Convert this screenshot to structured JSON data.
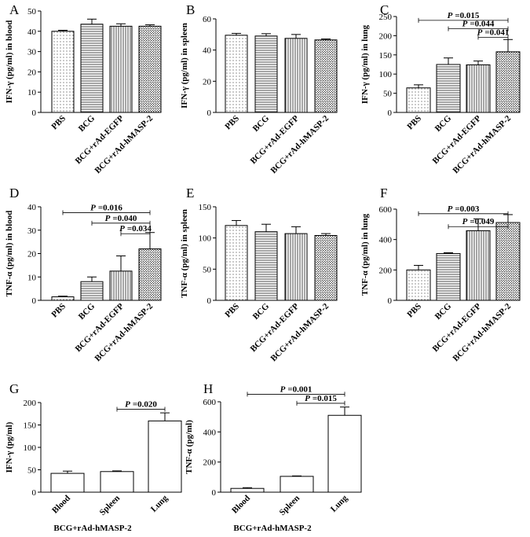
{
  "chart_data": [
    {
      "id": "A",
      "type": "bar",
      "panel_label": "A",
      "ylabel": "IFN-γ (pg/ml) in blood",
      "ylim": [
        0,
        50
      ],
      "yticks": [
        0,
        10,
        20,
        30,
        40,
        50
      ],
      "categories": [
        "PBS",
        "BCG",
        "BCG+rAd-EGFP",
        "BCG+rAd-hMASP-2"
      ],
      "values": [
        40,
        43.5,
        42.5,
        42.5
      ],
      "errors": [
        0.5,
        2.5,
        1.2,
        0.7
      ],
      "patterns": [
        "dots",
        "hlines",
        "vlines",
        "dense"
      ],
      "significance": []
    },
    {
      "id": "B",
      "type": "bar",
      "panel_label": "B",
      "ylabel": "IFN-γ (pg/ml) in spleen",
      "ylim": [
        0,
        60
      ],
      "yticks": [
        0,
        20,
        40,
        60
      ],
      "categories": [
        "PBS",
        "BCG",
        "BCG+rAd-EGFP",
        "BCG+rAd-hMASP-2"
      ],
      "values": [
        49.5,
        49,
        47.5,
        46.5
      ],
      "errors": [
        1.2,
        1.5,
        2.5,
        0.6
      ],
      "patterns": [
        "dots",
        "hlines",
        "vlines",
        "dense"
      ],
      "significance": []
    },
    {
      "id": "C",
      "type": "bar",
      "panel_label": "C",
      "ylabel": "IFN-γ (pg/ml) in lung",
      "ylim": [
        0,
        250
      ],
      "yticks": [
        0,
        50,
        100,
        150,
        200,
        250
      ],
      "categories": [
        "PBS",
        "BCG",
        "BCG+rAd-EGFP",
        "BCG+rAd-hMASP-2"
      ],
      "values": [
        64,
        125,
        124,
        158
      ],
      "errors": [
        8,
        17,
        10,
        32
      ],
      "patterns": [
        "dots",
        "hlines",
        "vlines",
        "dense"
      ],
      "significance": [
        {
          "label": "P =0.015",
          "p_prefix": "P",
          "p_value": "=0.015",
          "from": 0,
          "to": 3,
          "y": 240
        },
        {
          "label": "P =0.044",
          "p_prefix": "P",
          "p_value": "=0.044",
          "from": 1,
          "to": 3,
          "y": 218
        },
        {
          "label": "P =0.041",
          "p_prefix": "P",
          "p_value": "=0.041",
          "from": 2,
          "to": 3,
          "y": 196
        }
      ]
    },
    {
      "id": "D",
      "type": "bar",
      "panel_label": "D",
      "ylabel": "TNF-α (pg/ml) in blood",
      "ylim": [
        0,
        40
      ],
      "yticks": [
        0,
        10,
        20,
        30,
        40
      ],
      "categories": [
        "PBS",
        "BCG",
        "BCG+rAd-EGFP",
        "BCG+rAd-hMASP-2"
      ],
      "values": [
        1.5,
        8,
        12.5,
        22
      ],
      "errors": [
        0.3,
        2,
        6.5,
        7
      ],
      "patterns": [
        "dots",
        "hlines",
        "vlines",
        "dense"
      ],
      "significance": [
        {
          "label": "P =0.016",
          "p_prefix": "P",
          "p_value": "=0.016",
          "from": 0,
          "to": 3,
          "y": 37.5
        },
        {
          "label": "P =0.040",
          "p_prefix": "P",
          "p_value": "=0.040",
          "from": 1,
          "to": 3,
          "y": 33
        },
        {
          "label": "P =0.034",
          "p_prefix": "P",
          "p_value": "=0.034",
          "from": 2,
          "to": 3,
          "y": 28.5
        }
      ]
    },
    {
      "id": "E",
      "type": "bar",
      "panel_label": "E",
      "ylabel": "TNF-α (pg/ml) in spleen",
      "ylim": [
        0,
        150
      ],
      "yticks": [
        0,
        50,
        100,
        150
      ],
      "categories": [
        "PBS",
        "BCG",
        "BCG+rAd-EGFP",
        "BCG+rAd-hMASP-2"
      ],
      "values": [
        120,
        110,
        107,
        104
      ],
      "errors": [
        8,
        12,
        11,
        3
      ],
      "patterns": [
        "dots",
        "hlines",
        "vlines",
        "dense"
      ],
      "significance": []
    },
    {
      "id": "F",
      "type": "bar",
      "panel_label": "F",
      "ylabel": "TNF-α (pg/ml) in lung",
      "ylim": [
        0,
        600
      ],
      "yticks": [
        0,
        200,
        400,
        600
      ],
      "categories": [
        "PBS",
        "BCG",
        "BCG+rAd-EGFP",
        "BCG+rAd-hMASP-2"
      ],
      "values": [
        200,
        308,
        458,
        512
      ],
      "errors": [
        30,
        5,
        78,
        52
      ],
      "patterns": [
        "dots",
        "hlines",
        "vlines",
        "dense"
      ],
      "significance": [
        {
          "label": "P =0.003",
          "p_prefix": "P",
          "p_value": "=0.003",
          "from": 0,
          "to": 3,
          "y": 570
        },
        {
          "label": "P =0.049",
          "p_prefix": "P",
          "p_value": "=0.049",
          "from": 1,
          "to": 3,
          "y": 485
        }
      ]
    },
    {
      "id": "G",
      "type": "bar",
      "panel_label": "G",
      "ylabel": "IFN-γ  (pg/ml)",
      "ylim": [
        0,
        200
      ],
      "yticks": [
        0,
        50,
        100,
        150,
        200
      ],
      "categories": [
        "Blood",
        "Spleen",
        "Lung"
      ],
      "values": [
        42,
        46,
        159
      ],
      "errors": [
        5,
        1.5,
        18
      ],
      "patterns": [
        "none",
        "none",
        "none"
      ],
      "xlabel": "BCG+rAd-hMASP-2",
      "significance": [
        {
          "label": "P =0.020",
          "p_prefix": "P",
          "p_value": "=0.020",
          "from": 1,
          "to": 2,
          "y": 185
        }
      ]
    },
    {
      "id": "H",
      "type": "bar",
      "panel_label": "H",
      "ylabel": "TNF-α  (pg/ml)",
      "ylim": [
        0,
        600
      ],
      "yticks": [
        0,
        200,
        400,
        600
      ],
      "categories": [
        "Blood",
        "Spleen",
        "Lung"
      ],
      "values": [
        25,
        105,
        510
      ],
      "errors": [
        5,
        3,
        55
      ],
      "patterns": [
        "none",
        "none",
        "none"
      ],
      "xlabel": "BCG+rAd-hMASP-2",
      "significance": [
        {
          "label": "P =0.001",
          "p_prefix": "P",
          "p_value": "=0.001",
          "from": 0,
          "to": 2,
          "y": 650
        },
        {
          "label": "P =0.015",
          "p_prefix": "P",
          "p_value": "=0.015",
          "from": 1,
          "to": 2,
          "y": 590
        }
      ]
    }
  ]
}
